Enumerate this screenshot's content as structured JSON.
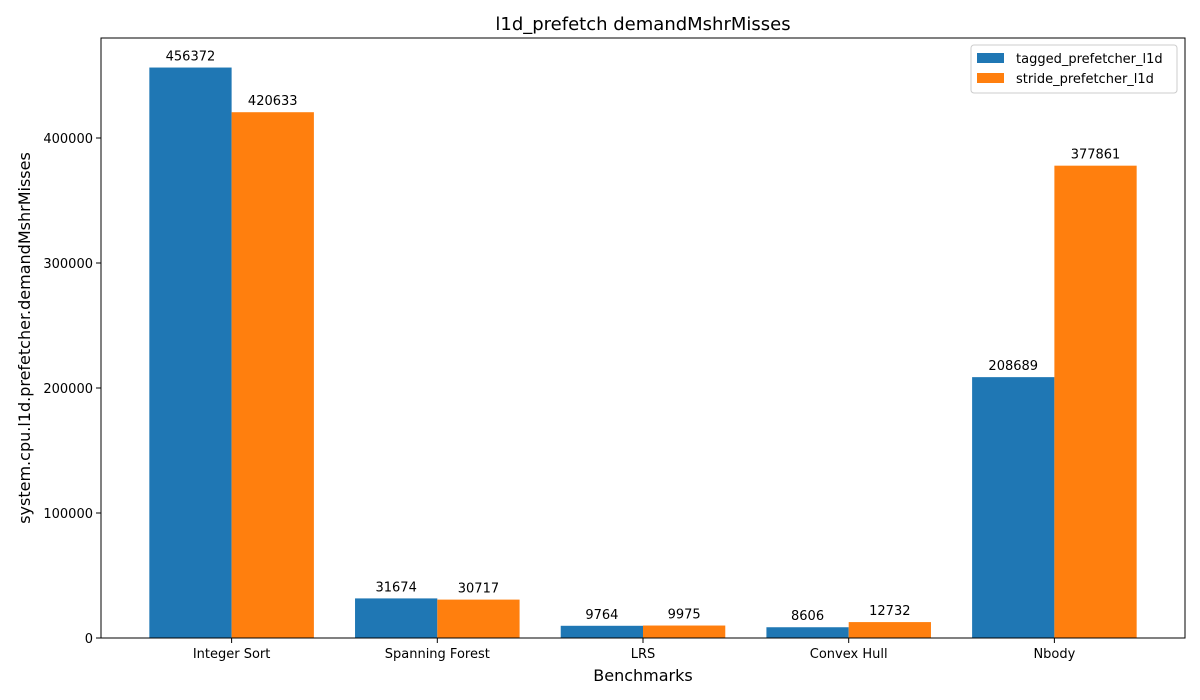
{
  "chart_data": {
    "type": "bar",
    "title": "l1d_prefetch demandMshrMisses",
    "xlabel": "Benchmarks",
    "ylabel": "system.cpu.l1d.prefetcher.demandMshrMisses",
    "categories": [
      "Integer Sort",
      "Spanning Forest",
      "LRS",
      "Convex Hull",
      "Nbody"
    ],
    "series": [
      {
        "name": "tagged_prefetcher_l1d",
        "color": "#1f77b4",
        "values": [
          456372,
          31674,
          9764,
          8606,
          208689
        ]
      },
      {
        "name": "stride_prefetcher_l1d",
        "color": "#ff7f0e",
        "values": [
          420633,
          30717,
          9975,
          12732,
          377861
        ]
      }
    ],
    "ylim": [
      0,
      480000
    ],
    "yticks": [
      0,
      100000,
      200000,
      300000,
      400000
    ],
    "ytick_labels": [
      "0",
      "100000",
      "200000",
      "300000",
      "400000"
    ],
    "legend_position": "top-right",
    "grid": false
  }
}
